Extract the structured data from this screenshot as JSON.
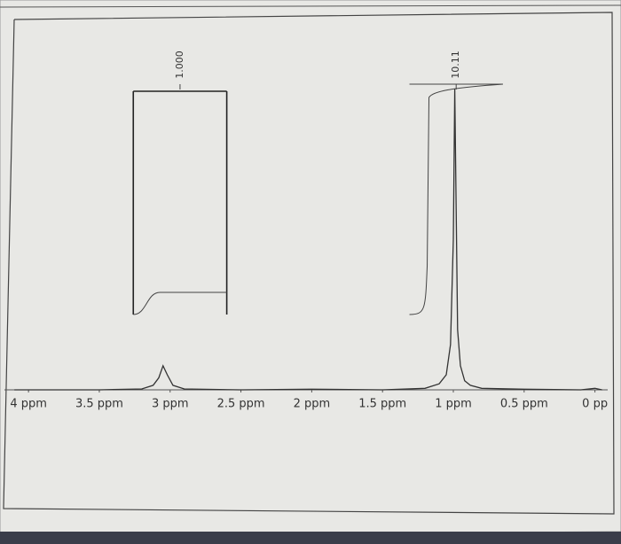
{
  "chart_data": {
    "type": "line",
    "x": [
      4.1,
      3.5,
      3.2,
      3.12,
      3.08,
      3.05,
      3.02,
      2.98,
      2.9,
      2.5,
      2.0,
      1.5,
      1.2,
      1.1,
      1.05,
      1.02,
      1.0,
      0.99,
      0.98,
      0.97,
      0.95,
      0.92,
      0.88,
      0.8,
      0.5,
      0.1,
      0.0,
      -0.05
    ],
    "series": [
      {
        "color": "#333333",
        "values": [
          0,
          0,
          0.3,
          1.5,
          4,
          8,
          5,
          1.5,
          0.3,
          0,
          0.2,
          0,
          0.5,
          2,
          5,
          15,
          50,
          100,
          60,
          20,
          8,
          3,
          1.5,
          0.5,
          0.2,
          0,
          0.5,
          0
        ]
      }
    ],
    "xlim": [
      4.17,
      -0.09
    ],
    "ylim": [
      0,
      100
    ],
    "xticks": [
      {
        "value": 4,
        "label": "4 ppm"
      },
      {
        "value": 3.5,
        "label": "3.5 ppm"
      },
      {
        "value": 3,
        "label": "3 ppm"
      },
      {
        "value": 2.5,
        "label": "2.5 ppm"
      },
      {
        "value": 2,
        "label": "2 ppm"
      },
      {
        "value": 1.5,
        "label": "1.5 ppm"
      },
      {
        "value": 1,
        "label": "1 ppm"
      },
      {
        "value": 0.5,
        "label": "0.5 ppm"
      },
      {
        "value": 0,
        "label": "0 pp"
      }
    ],
    "integrals": [
      {
        "label": "1.000",
        "range": [
          3.26,
          2.6
        ]
      },
      {
        "label": "10.11",
        "range": [
          1.31,
          0.65
        ]
      }
    ]
  }
}
